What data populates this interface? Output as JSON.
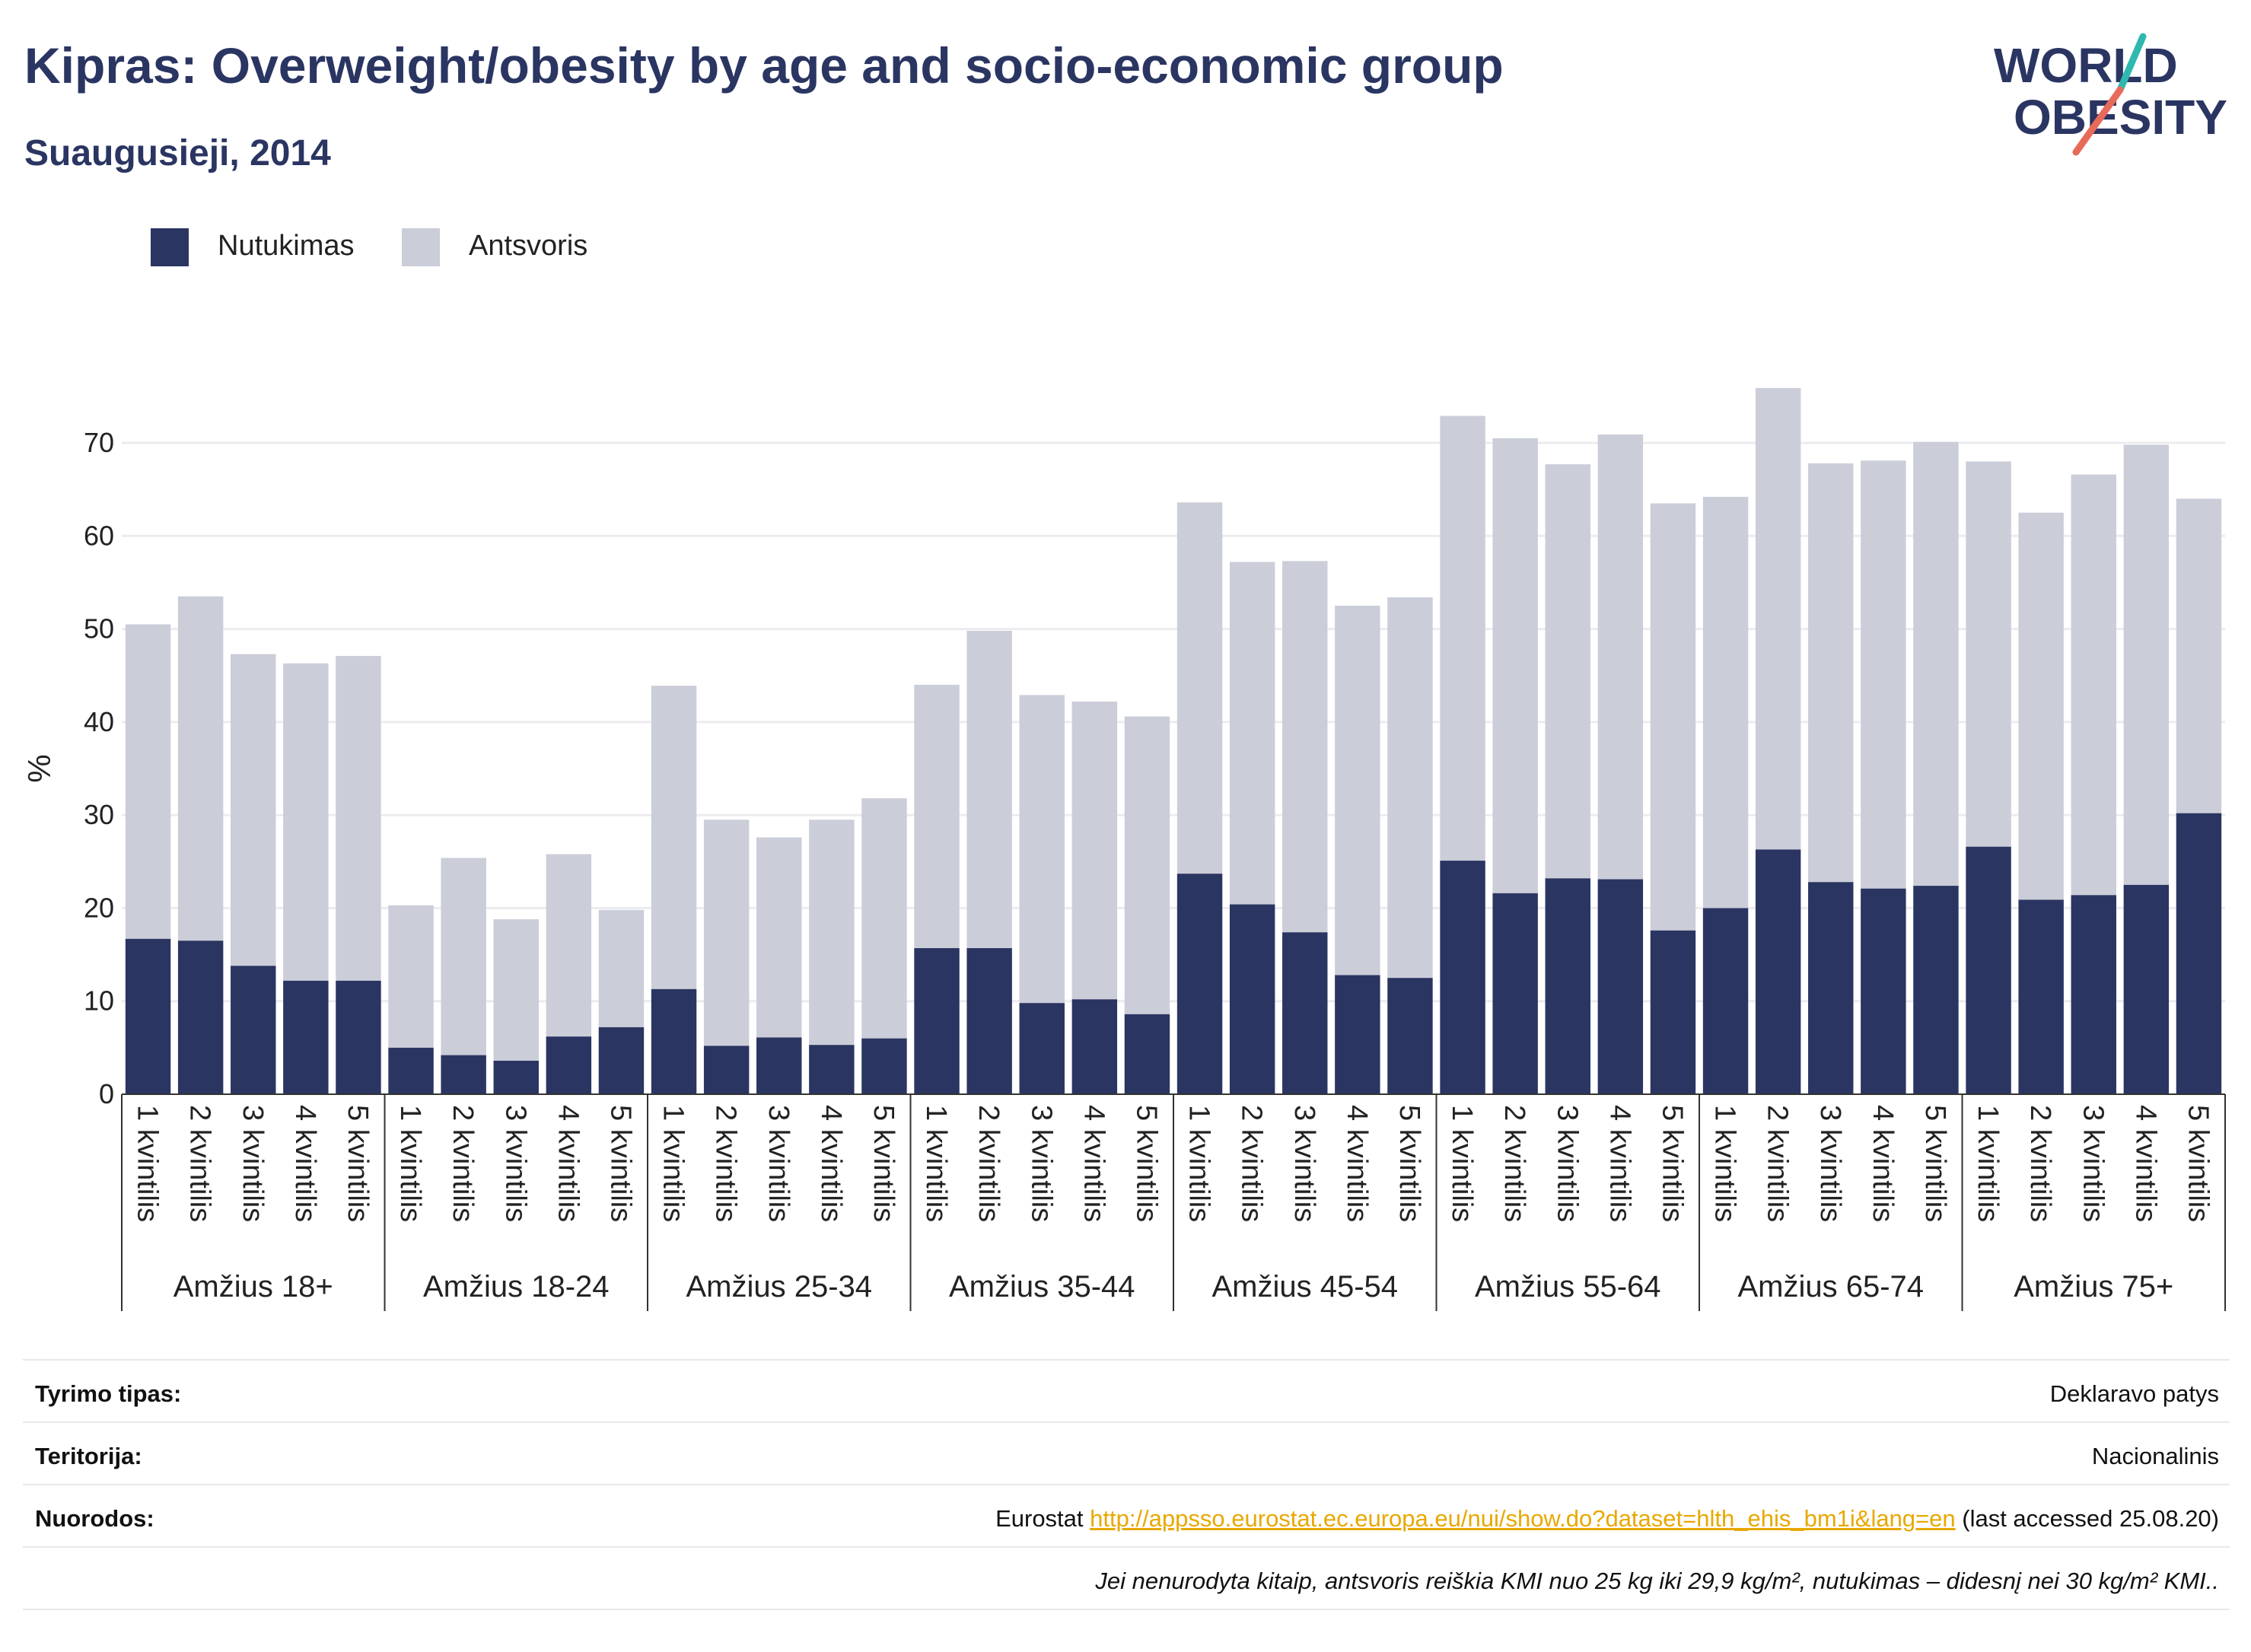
{
  "header": {
    "title": "Kipras: Overweight/obesity by age and socio-economic group",
    "subtitle": "Suaugusieji, 2014"
  },
  "logo": {
    "line1": "WORLD",
    "line2": "OBESITY"
  },
  "colors": {
    "obesity": "#2b3561",
    "overweight": "#cbcdd9",
    "text": "#2a3562",
    "link": "#e8a800"
  },
  "chart_data": {
    "type": "bar",
    "stacked": true,
    "ylabel": "%",
    "ylim": [
      0,
      78
    ],
    "yticks": [
      0,
      10,
      20,
      30,
      40,
      50,
      60,
      70
    ],
    "grid": true,
    "legend_position": "top-left",
    "series": [
      {
        "name": "Nutukimas",
        "color": "#2b3561",
        "values": [
          16.7,
          16.5,
          13.8,
          12.2,
          12.2,
          5.0,
          4.2,
          3.6,
          6.2,
          7.2,
          11.3,
          5.2,
          6.1,
          5.3,
          6.0,
          15.7,
          15.7,
          9.8,
          10.2,
          8.6,
          23.7,
          20.4,
          17.4,
          12.8,
          12.5,
          25.1,
          21.6,
          23.2,
          23.1,
          17.6,
          20.0,
          26.3,
          22.8,
          22.1,
          22.4,
          26.6,
          20.9,
          21.4,
          22.5,
          30.2
        ]
      },
      {
        "name": "Antsvoris",
        "color": "#cbcdd9",
        "values": [
          33.8,
          37.0,
          33.5,
          34.1,
          34.9,
          15.3,
          21.2,
          15.2,
          19.6,
          12.6,
          32.6,
          24.3,
          21.5,
          24.2,
          25.8,
          28.3,
          34.1,
          33.1,
          32.0,
          32.0,
          39.9,
          36.8,
          39.9,
          39.7,
          40.9,
          47.8,
          48.9,
          44.5,
          47.8,
          45.9,
          44.2,
          49.6,
          45.0,
          46.0,
          47.7,
          41.4,
          41.6,
          45.2,
          47.3,
          33.8
        ]
      }
    ],
    "groups": [
      {
        "label": "Amžius 18+",
        "categories": [
          "1 kvintilis",
          "2 kvintilis",
          "3 kvintilis",
          "4 kvintilis",
          "5 kvintilis"
        ]
      },
      {
        "label": "Amžius 18-24",
        "categories": [
          "1 kvintilis",
          "2 kvintilis",
          "3 kvintilis",
          "4 kvintilis",
          "5 kvintilis"
        ]
      },
      {
        "label": "Amžius 25-34",
        "categories": [
          "1 kvintilis",
          "2 kvintilis",
          "3 kvintilis",
          "4 kvintilis",
          "5 kvintilis"
        ]
      },
      {
        "label": "Amžius 35-44",
        "categories": [
          "1 kvintilis",
          "2 kvintilis",
          "3 kvintilis",
          "4 kvintilis",
          "5 kvintilis"
        ]
      },
      {
        "label": "Amžius 45-54",
        "categories": [
          "1 kvintilis",
          "2 kvintilis",
          "3 kvintilis",
          "4 kvintilis",
          "5 kvintilis"
        ]
      },
      {
        "label": "Amžius 55-64",
        "categories": [
          "1 kvintilis",
          "2 kvintilis",
          "3 kvintilis",
          "4 kvintilis",
          "5 kvintilis"
        ]
      },
      {
        "label": "Amžius 65-74",
        "categories": [
          "1 kvintilis",
          "2 kvintilis",
          "3 kvintilis",
          "4 kvintilis",
          "5 kvintilis"
        ]
      },
      {
        "label": "Amžius 75+",
        "categories": [
          "1 kvintilis",
          "2 kvintilis",
          "3 kvintilis",
          "4 kvintilis",
          "5 kvintilis"
        ]
      }
    ]
  },
  "meta": {
    "survey_label": "Tyrimo tipas:",
    "survey_value": "Deklaravo patys",
    "territory_label": "Teritorija:",
    "territory_value": "Nacionalinis",
    "refs_label": "Nuorodos:",
    "refs_prefix": "Eurostat ",
    "refs_link": "http://appsso.eurostat.ec.europa.eu/nui/show.do?dataset=hlth_ehis_bm1i&lang=en",
    "refs_suffix": " (last accessed 25.08.20)",
    "note": "Jei nenurodyta kitaip, antsvoris reiškia KMI nuo 25 kg iki 29,9 kg/m², nutukimas – didesnį nei 30 kg/m² KMI.."
  }
}
